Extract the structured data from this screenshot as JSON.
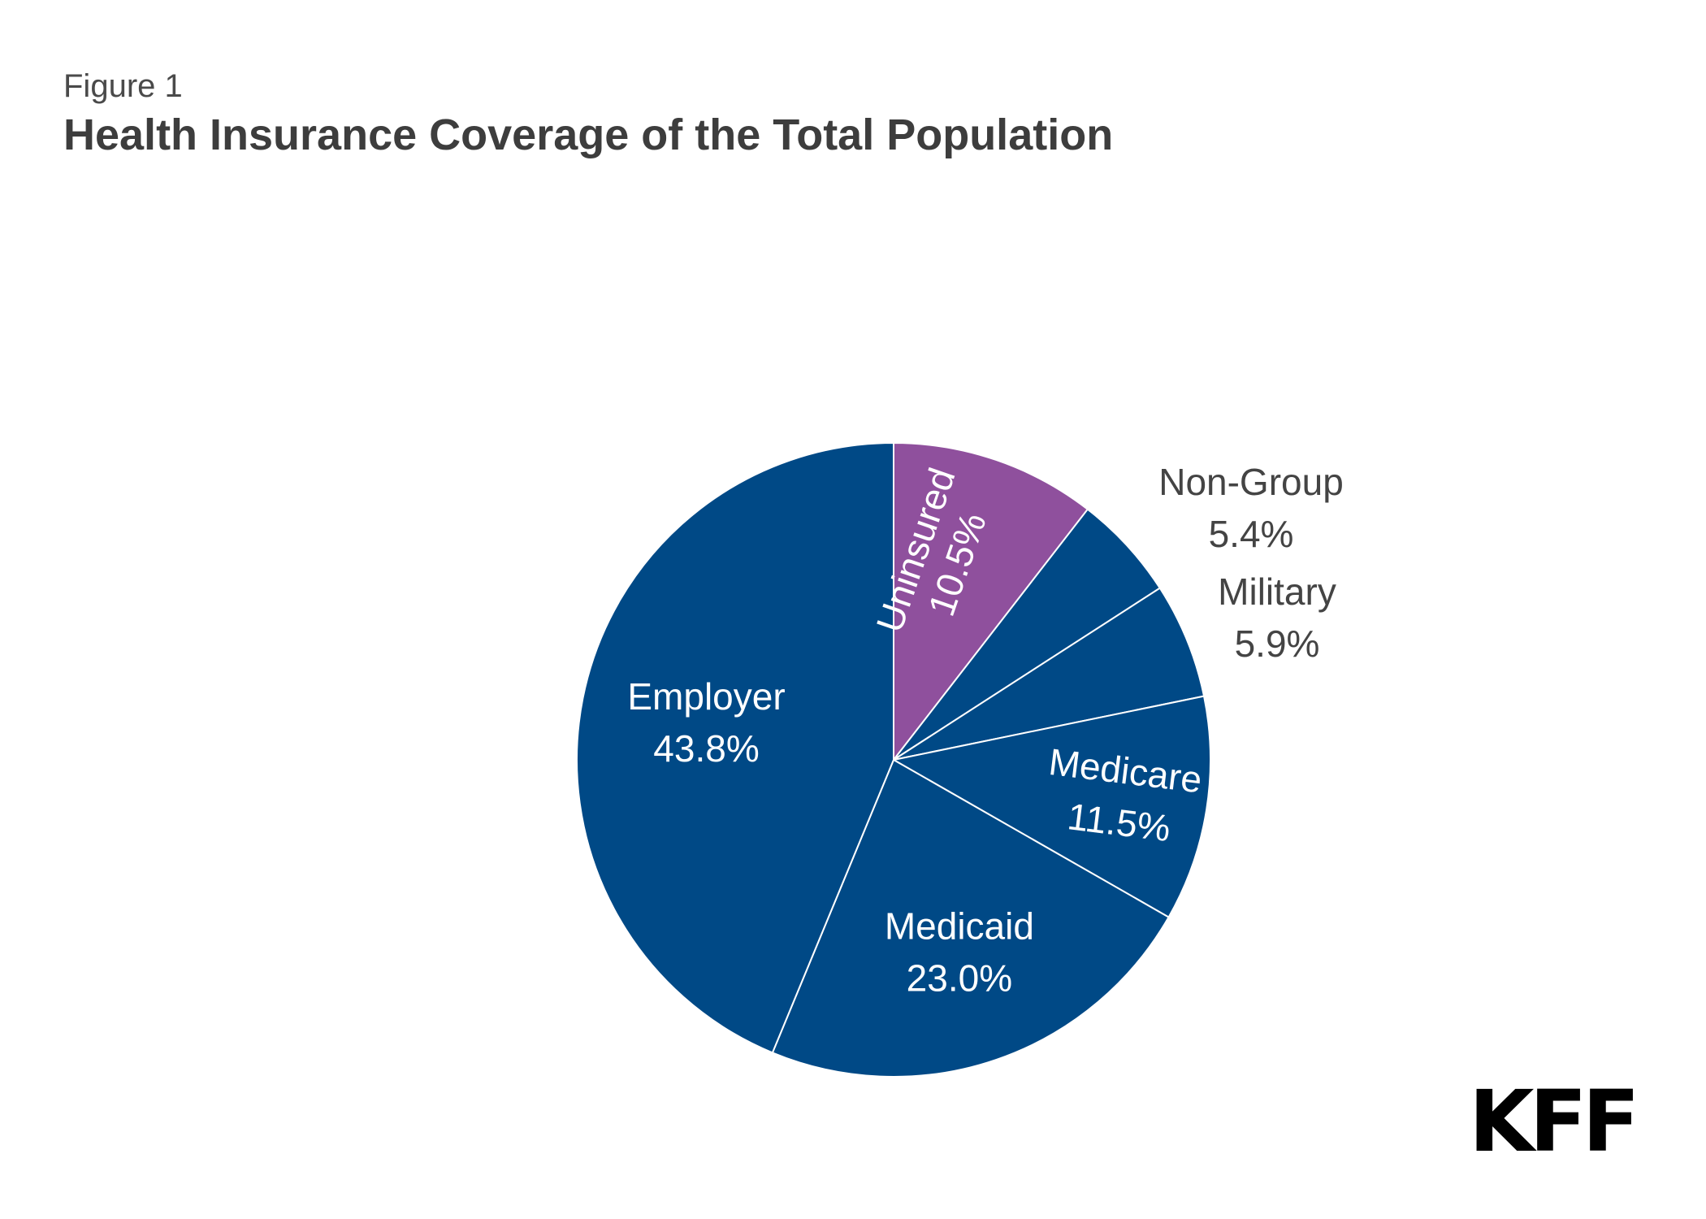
{
  "figure_label": "Figure 1",
  "logo_text": "KFF",
  "colors": {
    "blue": "#004986",
    "purple": "#8f509d",
    "outside_label": "#444444",
    "inside_label": "#ffffff"
  },
  "chart_data": {
    "type": "pie",
    "title": "Health Insurance Coverage of the Total Population",
    "slices": [
      {
        "name": "Uninsured",
        "value": 10.5,
        "value_label": "10.5%",
        "color": "#8f509d",
        "label_position": "inside-rotated"
      },
      {
        "name": "Non-Group",
        "value": 5.4,
        "value_label": "5.4%",
        "color": "#004986",
        "label_position": "outside"
      },
      {
        "name": "Military",
        "value": 5.9,
        "value_label": "5.9%",
        "color": "#004986",
        "label_position": "outside"
      },
      {
        "name": "Medicare",
        "value": 11.5,
        "value_label": "11.5%",
        "color": "#004986",
        "label_position": "inside-rotated"
      },
      {
        "name": "Medicaid",
        "value": 23.0,
        "value_label": "23.0%",
        "color": "#004986",
        "label_position": "inside"
      },
      {
        "name": "Employer",
        "value": 43.8,
        "value_label": "43.8%",
        "color": "#004986",
        "label_position": "inside"
      }
    ],
    "start_angle": "12 o'clock",
    "direction": "clockwise",
    "legend": "none"
  }
}
